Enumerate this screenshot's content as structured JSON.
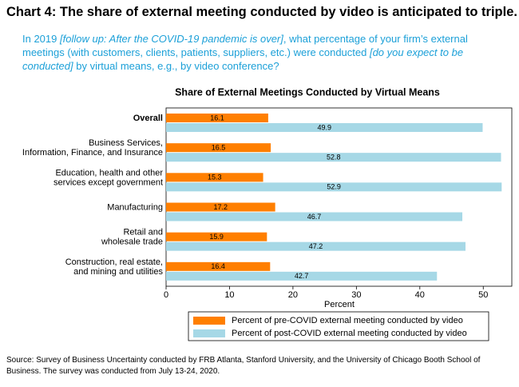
{
  "header": {
    "title": "Chart 4: The share of external meeting conducted by video is anticipated to triple.",
    "question": [
      {
        "text": "In 2019 ",
        "italic": false
      },
      {
        "text": "[follow up: After the COVID-19 pandemic is over]",
        "italic": true
      },
      {
        "text": ", what percentage of your firm’s external meetings (with customers, clients, patients, suppliers, etc.) were conducted ",
        "italic": false
      },
      {
        "text": "[do you expect to be conducted]",
        "italic": true
      },
      {
        "text": " by virtual means, e.g., by video conference?",
        "italic": false
      }
    ]
  },
  "chart_data": {
    "type": "hbar",
    "title": "Share of External Meetings Conducted by Virtual Means",
    "x_label": "Percent",
    "categories": [
      [
        "Overall"
      ],
      [
        "Business Services,",
        "Information, Finance, and Insurance"
      ],
      [
        "Education, health and other",
        "services except government"
      ],
      [
        "Manufacturing"
      ],
      [
        "Retail and",
        "wholesale trade"
      ],
      [
        "Construction, real estate,",
        "and mining and utilities"
      ]
    ],
    "series": [
      {
        "name": "Percent of pre-COVID external meeting conducted by video",
        "color": "#ff7f00",
        "values": [
          16.1,
          16.5,
          15.3,
          17.2,
          15.9,
          16.4
        ]
      },
      {
        "name": "Percent of post-COVID external meeting conducted by video",
        "color": "#a6d8e6",
        "values": [
          49.9,
          52.8,
          52.9,
          46.7,
          47.2,
          42.7
        ]
      }
    ],
    "xlim": [
      0,
      54.5
    ],
    "xticks": [
      0,
      10,
      20,
      30,
      40,
      50
    ],
    "grid": false
  },
  "footer": {
    "source": "Source: Survey of Business Uncertainty conducted by FRB Atlanta, Stanford University, and the University of Chicago Booth School of Business.  The survey was conducted from July 13-24, 2020."
  }
}
